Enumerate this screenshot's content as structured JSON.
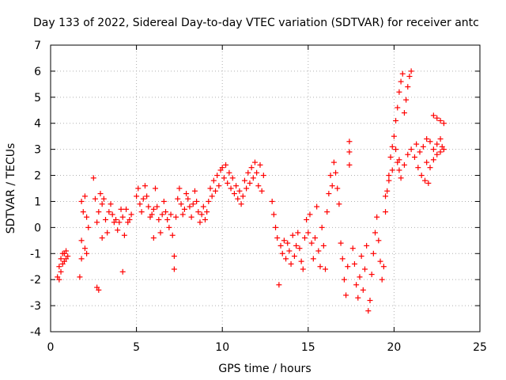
{
  "chart_data": {
    "type": "scatter",
    "title": "Day 133 of 2022, Sidereal Day-to-day VTEC variation (SDTVAR) for receiver antc",
    "xlabel": "GPS time / hours",
    "ylabel": "SDTVAR / TECUs",
    "xlim": [
      0,
      25
    ],
    "ylim": [
      -4,
      7
    ],
    "xticks": [
      0,
      5,
      10,
      15,
      20,
      25
    ],
    "yticks": [
      -4,
      -3,
      -2,
      -1,
      0,
      1,
      2,
      3,
      4,
      5,
      6,
      7
    ],
    "grid": true,
    "marker": "+",
    "color": "#ff0000",
    "series": [
      {
        "name": "SDTVAR",
        "points": [
          [
            0.4,
            -1.9
          ],
          [
            0.5,
            -1.5
          ],
          [
            0.6,
            -1.2
          ],
          [
            0.7,
            -1.0
          ],
          [
            0.8,
            -1.3
          ],
          [
            0.9,
            -0.9
          ],
          [
            1.0,
            -1.1
          ],
          [
            0.5,
            -2.0
          ],
          [
            0.6,
            -1.7
          ],
          [
            0.7,
            -1.4
          ],
          [
            0.8,
            -1.0
          ],
          [
            0.9,
            -1.2
          ],
          [
            1.7,
            -1.9
          ],
          [
            1.8,
            -1.2
          ],
          [
            1.8,
            -0.5
          ],
          [
            1.8,
            1.0
          ],
          [
            1.9,
            0.6
          ],
          [
            2.0,
            1.2
          ],
          [
            2.0,
            -0.8
          ],
          [
            2.1,
            0.4
          ],
          [
            2.1,
            -1.0
          ],
          [
            2.2,
            0.0
          ],
          [
            2.5,
            1.9
          ],
          [
            2.6,
            1.1
          ],
          [
            2.7,
            0.2
          ],
          [
            2.7,
            -2.3
          ],
          [
            2.8,
            -2.4
          ],
          [
            2.8,
            0.6
          ],
          [
            2.9,
            1.3
          ],
          [
            3.0,
            -0.4
          ],
          [
            3.0,
            0.9
          ],
          [
            3.1,
            1.1
          ],
          [
            3.2,
            0.3
          ],
          [
            3.3,
            -0.2
          ],
          [
            3.4,
            0.6
          ],
          [
            3.5,
            0.9
          ],
          [
            3.6,
            0.5
          ],
          [
            3.7,
            0.2
          ],
          [
            3.8,
            0.3
          ],
          [
            3.9,
            -0.1
          ],
          [
            4.0,
            0.2
          ],
          [
            4.1,
            0.7
          ],
          [
            4.2,
            -1.7
          ],
          [
            4.2,
            0.4
          ],
          [
            4.3,
            -0.3
          ],
          [
            4.4,
            0.7
          ],
          [
            4.5,
            0.2
          ],
          [
            4.6,
            0.3
          ],
          [
            4.7,
            0.5
          ],
          [
            5.0,
            1.2
          ],
          [
            5.1,
            1.5
          ],
          [
            5.2,
            0.9
          ],
          [
            5.3,
            0.6
          ],
          [
            5.4,
            1.1
          ],
          [
            5.5,
            1.6
          ],
          [
            5.6,
            1.2
          ],
          [
            5.7,
            0.8
          ],
          [
            5.8,
            0.4
          ],
          [
            5.9,
            0.5
          ],
          [
            6.0,
            -0.4
          ],
          [
            6.0,
            0.7
          ],
          [
            6.1,
            1.5
          ],
          [
            6.2,
            0.8
          ],
          [
            6.3,
            0.3
          ],
          [
            6.4,
            -0.2
          ],
          [
            6.5,
            0.5
          ],
          [
            6.6,
            1.0
          ],
          [
            6.7,
            0.6
          ],
          [
            6.8,
            0.3
          ],
          [
            6.9,
            0.0
          ],
          [
            7.0,
            0.5
          ],
          [
            7.1,
            -0.3
          ],
          [
            7.2,
            -1.1
          ],
          [
            7.2,
            -1.6
          ],
          [
            7.3,
            0.4
          ],
          [
            7.4,
            1.1
          ],
          [
            7.5,
            1.5
          ],
          [
            7.6,
            0.9
          ],
          [
            7.7,
            0.5
          ],
          [
            7.8,
            0.7
          ],
          [
            7.9,
            1.3
          ],
          [
            8.0,
            1.1
          ],
          [
            8.1,
            0.8
          ],
          [
            8.2,
            0.4
          ],
          [
            8.3,
            0.9
          ],
          [
            8.4,
            1.4
          ],
          [
            8.5,
            1.0
          ],
          [
            8.6,
            0.6
          ],
          [
            8.7,
            0.2
          ],
          [
            8.8,
            0.5
          ],
          [
            8.9,
            0.8
          ],
          [
            9.0,
            0.3
          ],
          [
            9.1,
            0.6
          ],
          [
            9.2,
            1.0
          ],
          [
            9.3,
            1.5
          ],
          [
            9.4,
            1.2
          ],
          [
            9.5,
            1.8
          ],
          [
            9.6,
            1.4
          ],
          [
            9.7,
            2.0
          ],
          [
            9.8,
            1.6
          ],
          [
            9.9,
            2.2
          ],
          [
            10.0,
            2.3
          ],
          [
            10.1,
            1.9
          ],
          [
            10.2,
            2.4
          ],
          [
            10.3,
            1.7
          ],
          [
            10.4,
            2.1
          ],
          [
            10.5,
            1.5
          ],
          [
            10.6,
            1.9
          ],
          [
            10.7,
            1.3
          ],
          [
            10.8,
            1.6
          ],
          [
            10.9,
            1.1
          ],
          [
            11.0,
            1.4
          ],
          [
            11.1,
            0.9
          ],
          [
            11.2,
            1.2
          ],
          [
            11.3,
            1.8
          ],
          [
            11.4,
            1.5
          ],
          [
            11.5,
            2.1
          ],
          [
            11.6,
            1.7
          ],
          [
            11.7,
            2.3
          ],
          [
            11.8,
            1.9
          ],
          [
            11.9,
            2.5
          ],
          [
            12.0,
            2.1
          ],
          [
            12.1,
            1.6
          ],
          [
            12.2,
            2.4
          ],
          [
            12.3,
            1.4
          ],
          [
            12.4,
            2.0
          ],
          [
            12.9,
            1.0
          ],
          [
            13.0,
            0.5
          ],
          [
            13.1,
            0.0
          ],
          [
            13.2,
            -0.4
          ],
          [
            13.3,
            -2.2
          ],
          [
            13.4,
            -0.7
          ],
          [
            13.5,
            -1.0
          ],
          [
            13.6,
            -0.5
          ],
          [
            13.7,
            -1.2
          ],
          [
            13.8,
            -0.6
          ],
          [
            13.9,
            -0.9
          ],
          [
            14.0,
            -1.4
          ],
          [
            14.1,
            -0.3
          ],
          [
            14.2,
            -1.1
          ],
          [
            14.3,
            -0.7
          ],
          [
            14.4,
            -0.2
          ],
          [
            14.5,
            -0.8
          ],
          [
            14.6,
            -1.3
          ],
          [
            14.7,
            -1.6
          ],
          [
            14.8,
            -0.4
          ],
          [
            14.9,
            0.3
          ],
          [
            15.0,
            -0.2
          ],
          [
            15.1,
            0.5
          ],
          [
            15.2,
            -0.6
          ],
          [
            15.3,
            -1.2
          ],
          [
            15.4,
            -0.4
          ],
          [
            15.5,
            0.8
          ],
          [
            15.6,
            -0.9
          ],
          [
            15.7,
            -1.5
          ],
          [
            15.8,
            0.0
          ],
          [
            15.9,
            -0.7
          ],
          [
            16.0,
            -1.6
          ],
          [
            16.1,
            0.6
          ],
          [
            16.2,
            1.3
          ],
          [
            16.3,
            2.0
          ],
          [
            16.4,
            1.6
          ],
          [
            16.5,
            2.5
          ],
          [
            16.6,
            2.1
          ],
          [
            16.7,
            1.5
          ],
          [
            16.8,
            0.9
          ],
          [
            16.9,
            -0.6
          ],
          [
            17.0,
            -1.2
          ],
          [
            17.1,
            -2.0
          ],
          [
            17.2,
            -2.6
          ],
          [
            17.3,
            -1.5
          ],
          [
            17.4,
            3.3
          ],
          [
            17.4,
            2.9
          ],
          [
            17.4,
            2.4
          ],
          [
            17.6,
            -0.8
          ],
          [
            17.7,
            -1.4
          ],
          [
            17.8,
            -2.2
          ],
          [
            17.9,
            -2.7
          ],
          [
            18.0,
            -1.9
          ],
          [
            18.1,
            -1.1
          ],
          [
            18.2,
            -2.4
          ],
          [
            18.3,
            -1.6
          ],
          [
            18.4,
            -0.7
          ],
          [
            18.5,
            -3.2
          ],
          [
            18.6,
            -2.8
          ],
          [
            18.7,
            -1.8
          ],
          [
            18.8,
            -1.0
          ],
          [
            18.9,
            -0.2
          ],
          [
            19.0,
            0.4
          ],
          [
            19.1,
            -0.5
          ],
          [
            19.2,
            -1.3
          ],
          [
            19.3,
            -2.0
          ],
          [
            19.4,
            -1.5
          ],
          [
            19.5,
            0.6
          ],
          [
            19.6,
            1.4
          ],
          [
            19.7,
            2.0
          ],
          [
            19.8,
            2.7
          ],
          [
            19.9,
            3.1
          ],
          [
            20.0,
            3.5
          ],
          [
            20.1,
            4.1
          ],
          [
            20.2,
            4.6
          ],
          [
            20.3,
            5.2
          ],
          [
            20.4,
            5.6
          ],
          [
            20.5,
            5.9
          ],
          [
            20.6,
            4.4
          ],
          [
            20.7,
            4.9
          ],
          [
            20.8,
            5.4
          ],
          [
            20.9,
            5.8
          ],
          [
            21.0,
            6.0
          ],
          [
            20.2,
            2.5
          ],
          [
            20.3,
            2.2
          ],
          [
            20.4,
            1.9
          ],
          [
            20.6,
            2.4
          ],
          [
            20.8,
            2.8
          ],
          [
            21.0,
            3.0
          ],
          [
            21.2,
            2.7
          ],
          [
            21.4,
            2.3
          ],
          [
            21.6,
            2.0
          ],
          [
            21.8,
            1.8
          ],
          [
            22.0,
            1.7
          ],
          [
            21.3,
            3.2
          ],
          [
            21.5,
            2.9
          ],
          [
            21.7,
            3.1
          ],
          [
            21.9,
            3.4
          ],
          [
            22.1,
            3.3
          ],
          [
            22.3,
            3.0
          ],
          [
            22.5,
            3.2
          ],
          [
            22.7,
            3.4
          ],
          [
            22.8,
            3.1
          ],
          [
            22.3,
            4.3
          ],
          [
            22.5,
            4.2
          ],
          [
            22.7,
            4.1
          ],
          [
            22.9,
            4.0
          ],
          [
            21.9,
            2.5
          ],
          [
            22.1,
            2.3
          ],
          [
            22.3,
            2.6
          ],
          [
            22.5,
            2.8
          ],
          [
            22.7,
            2.9
          ],
          [
            22.9,
            3.0
          ],
          [
            20.1,
            3.0
          ],
          [
            20.3,
            2.6
          ],
          [
            19.9,
            2.2
          ],
          [
            19.7,
            1.8
          ],
          [
            19.5,
            1.2
          ]
        ]
      }
    ]
  }
}
